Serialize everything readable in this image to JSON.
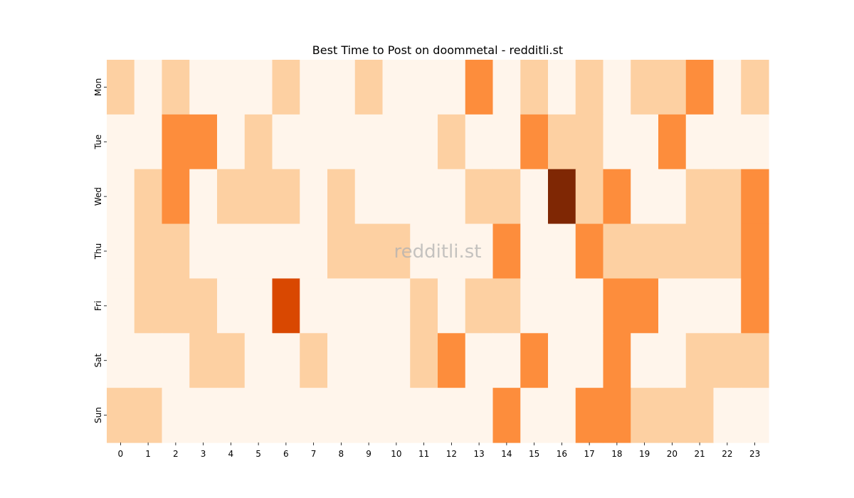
{
  "chart_data": {
    "type": "heatmap",
    "title": "Best Time to Post on doommetal - redditli.st",
    "watermark": "redditli.st",
    "xlabel": "",
    "ylabel": "",
    "x_ticks": [
      "0",
      "1",
      "2",
      "3",
      "4",
      "5",
      "6",
      "7",
      "8",
      "9",
      "10",
      "11",
      "12",
      "13",
      "14",
      "15",
      "16",
      "17",
      "18",
      "19",
      "20",
      "21",
      "22",
      "23"
    ],
    "y_ticks": [
      "Mon",
      "Tue",
      "Wed",
      "Thu",
      "Fri",
      "Sat",
      "Sun"
    ],
    "values": [
      [
        1,
        0,
        1,
        0,
        0,
        0,
        1,
        0,
        0,
        1,
        0,
        0,
        0,
        2,
        0,
        1,
        0,
        1,
        0,
        1,
        1,
        2,
        0,
        1
      ],
      [
        0,
        0,
        2,
        2,
        0,
        1,
        0,
        0,
        0,
        0,
        0,
        0,
        1,
        0,
        0,
        2,
        1,
        1,
        0,
        0,
        2,
        0,
        0,
        0
      ],
      [
        0,
        1,
        2,
        0,
        1,
        1,
        1,
        0,
        1,
        0,
        0,
        0,
        0,
        1,
        1,
        0,
        4,
        1,
        2,
        0,
        0,
        1,
        1,
        2
      ],
      [
        0,
        1,
        1,
        0,
        0,
        0,
        0,
        0,
        1,
        1,
        1,
        0,
        0,
        0,
        2,
        0,
        0,
        2,
        1,
        1,
        1,
        1,
        1,
        2
      ],
      [
        0,
        1,
        1,
        1,
        0,
        0,
        3,
        0,
        0,
        0,
        0,
        1,
        0,
        1,
        1,
        0,
        0,
        0,
        2,
        2,
        0,
        0,
        0,
        2
      ],
      [
        0,
        0,
        0,
        1,
        1,
        0,
        0,
        1,
        0,
        0,
        0,
        1,
        2,
        0,
        0,
        2,
        0,
        0,
        2,
        0,
        0,
        1,
        1,
        1
      ],
      [
        1,
        1,
        0,
        0,
        0,
        0,
        0,
        0,
        0,
        0,
        0,
        0,
        0,
        0,
        2,
        0,
        0,
        2,
        2,
        1,
        1,
        1,
        0,
        0
      ]
    ],
    "vmin": 0,
    "vmax": 4,
    "colors": [
      "#fff5eb",
      "#fdd0a2",
      "#fd8d3c",
      "#d94801",
      "#7f2704"
    ],
    "colorbar": false
  }
}
